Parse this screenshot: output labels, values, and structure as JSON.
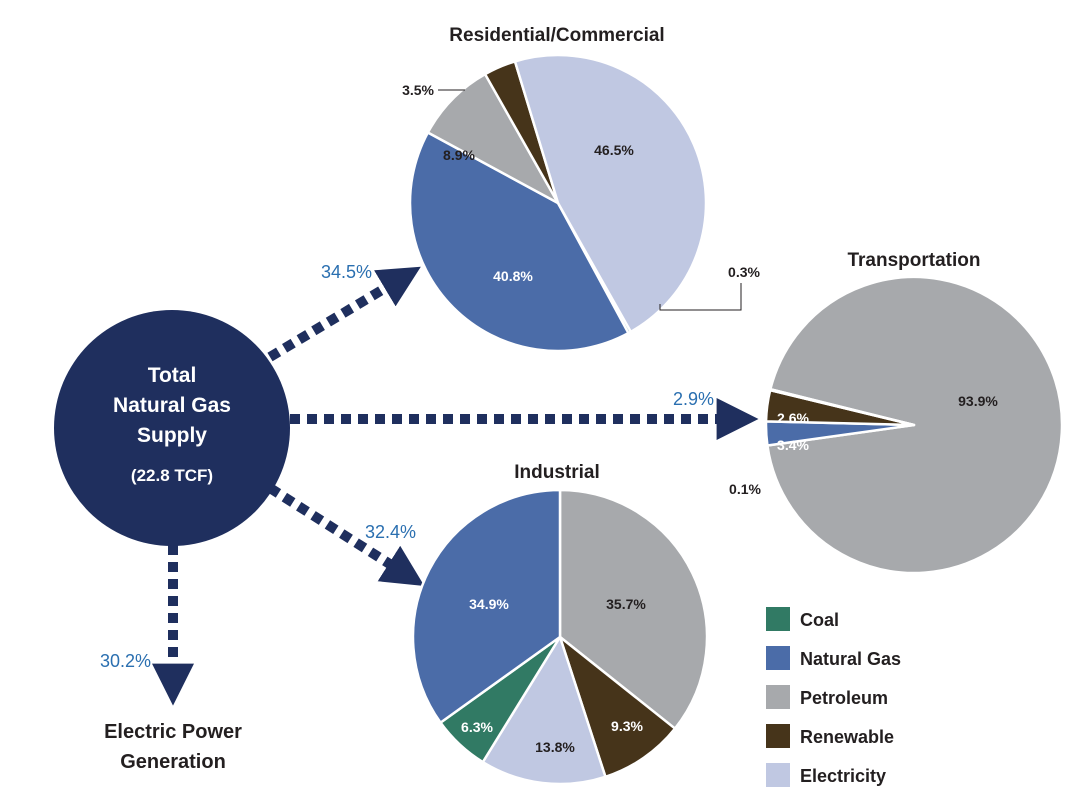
{
  "colors": {
    "Coal": "#317a64",
    "Natural Gas": "#4b6ca8",
    "Petroleum": "#a7a9ac",
    "Renewable": "#46341a",
    "Electricity": "#c0c8e2",
    "hub": "#1f2f5e",
    "flow_text": "#2a6fb0"
  },
  "hub": {
    "line1": "Total",
    "line2": "Natural Gas",
    "line3": "Supply",
    "line4": "(22.8 TCF)"
  },
  "flows": {
    "residential": "34.5%",
    "transportation": "2.9%",
    "industrial": "32.4%",
    "electric": "30.2%"
  },
  "electric": {
    "line1": "Electric Power",
    "line2": "Generation"
  },
  "legend": [
    {
      "key": "Coal",
      "label": "Coal"
    },
    {
      "key": "Natural Gas",
      "label": "Natural Gas"
    },
    {
      "key": "Petroleum",
      "label": "Petroleum"
    },
    {
      "key": "Renewable",
      "label": "Renewable"
    },
    {
      "key": "Electricity",
      "label": "Electricity"
    }
  ],
  "chart_data": [
    {
      "type": "pie",
      "title": "Residential/Commercial",
      "slices": [
        {
          "category": "Coal",
          "value": 0.3,
          "label": "0.3%"
        },
        {
          "category": "Natural Gas",
          "value": 40.8,
          "label": "40.8%"
        },
        {
          "category": "Petroleum",
          "value": 8.9,
          "label": "8.9%"
        },
        {
          "category": "Renewable",
          "value": 3.5,
          "label": "3.5%"
        },
        {
          "category": "Electricity",
          "value": 46.5,
          "label": "46.5%"
        }
      ]
    },
    {
      "type": "pie",
      "title": "Transportation",
      "slices": [
        {
          "category": "Petroleum",
          "value": 93.9,
          "label": "93.9%"
        },
        {
          "category": "Natural Gas",
          "value": 2.6,
          "label": "2.6%"
        },
        {
          "category": "Renewable",
          "value": 3.4,
          "label": "3.4%"
        },
        {
          "category": "Electricity",
          "value": 0.1,
          "label": "0.1%"
        }
      ]
    },
    {
      "type": "pie",
      "title": "Industrial",
      "slices": [
        {
          "category": "Petroleum",
          "value": 35.7,
          "label": "35.7%"
        },
        {
          "category": "Renewable",
          "value": 9.3,
          "label": "9.3%"
        },
        {
          "category": "Electricity",
          "value": 13.8,
          "label": "13.8%"
        },
        {
          "category": "Coal",
          "value": 6.3,
          "label": "6.3%"
        },
        {
          "category": "Natural Gas",
          "value": 34.9,
          "label": "34.9%"
        }
      ]
    }
  ]
}
